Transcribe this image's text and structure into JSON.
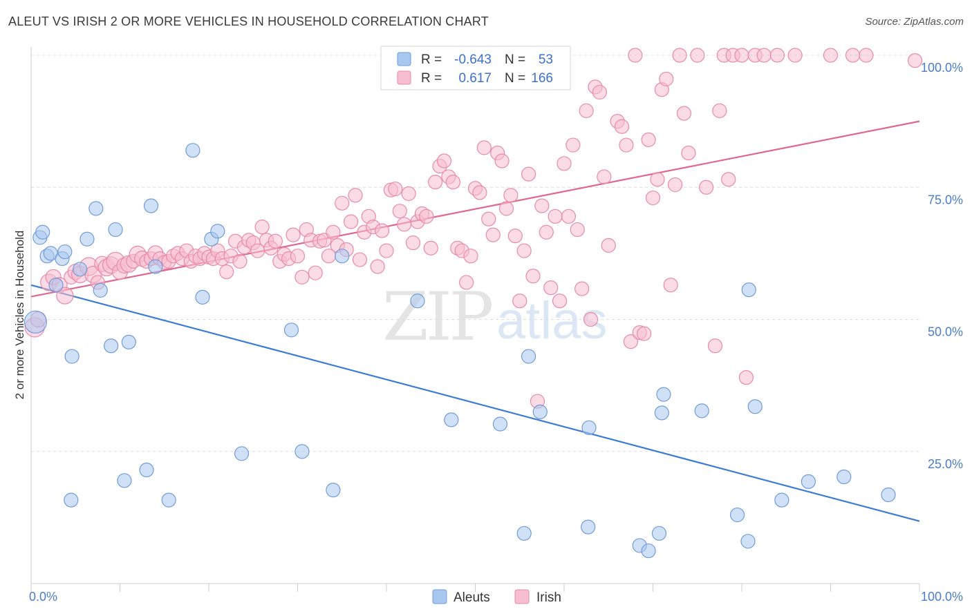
{
  "header": {
    "title": "ALEUT VS IRISH 2 OR MORE VEHICLES IN HOUSEHOLD CORRELATION CHART",
    "source": "Source: ZipAtlas.com"
  },
  "watermark": {
    "zip": "ZIP",
    "atlas": "atlas"
  },
  "legend": {
    "rows": [
      {
        "r_label": "R =",
        "r_value": "-0.643",
        "n_label": "N =",
        "n_value": "53",
        "color": "#a9c8f0",
        "stroke": "#6f9bd8"
      },
      {
        "r_label": "R =",
        "r_value": "0.617",
        "n_label": "N =",
        "n_value": "166",
        "color": "#f7bdd0",
        "stroke": "#e78aaa"
      }
    ]
  },
  "bottom_legend": [
    {
      "label": "Aleuts",
      "color": "#a9c8f0",
      "stroke": "#6f9bd8"
    },
    {
      "label": "Irish",
      "color": "#f7bdd0",
      "stroke": "#e78aaa"
    }
  ],
  "chart_data": {
    "type": "scatter",
    "xlabel": "",
    "ylabel": "2 or more Vehicles in Household",
    "xlim": [
      0,
      100
    ],
    "ylim": [
      0,
      102
    ],
    "x_tick_labels": [
      "0.0%",
      "100.0%"
    ],
    "y_ticks": [
      25,
      50,
      75,
      100
    ],
    "y_tick_labels": [
      "25.0%",
      "50.0%",
      "75.0%",
      "100.0%"
    ],
    "grid": true,
    "series": [
      {
        "name": "Aleuts",
        "color": "#a9c8f0",
        "stroke": "#6f9bd8",
        "trend": {
          "x": [
            0,
            100
          ],
          "y": [
            56.5,
            11.8
          ],
          "color": "#3a7bd5"
        },
        "points": [
          [
            0.5,
            49.5,
            16
          ],
          [
            1.0,
            65.5,
            10
          ],
          [
            1.3,
            66.5,
            10
          ],
          [
            1.8,
            62.0,
            10
          ],
          [
            2.2,
            62.5,
            10
          ],
          [
            2.8,
            56.5,
            10
          ],
          [
            3.5,
            61.5,
            10
          ],
          [
            3.8,
            62.8,
            10
          ],
          [
            4.5,
            15.8,
            10
          ],
          [
            4.6,
            43.0,
            10
          ],
          [
            5.5,
            59.5,
            10
          ],
          [
            6.3,
            65.2,
            10
          ],
          [
            7.3,
            71.0,
            10
          ],
          [
            7.8,
            55.5,
            10
          ],
          [
            9.0,
            45.0,
            10
          ],
          [
            9.5,
            67.0,
            10
          ],
          [
            10.5,
            19.5,
            10
          ],
          [
            11.0,
            45.7,
            10
          ],
          [
            13.0,
            21.5,
            10
          ],
          [
            13.5,
            71.5,
            10
          ],
          [
            14.0,
            60.0,
            10
          ],
          [
            15.5,
            15.8,
            10
          ],
          [
            18.2,
            82.0,
            10
          ],
          [
            19.3,
            54.2,
            10
          ],
          [
            20.3,
            65.2,
            10
          ],
          [
            21.0,
            66.7,
            10
          ],
          [
            23.7,
            24.6,
            10
          ],
          [
            29.3,
            48.0,
            10
          ],
          [
            30.5,
            25.0,
            10
          ],
          [
            34.0,
            17.7,
            10
          ],
          [
            35.0,
            62.0,
            10
          ],
          [
            43.5,
            53.5,
            10
          ],
          [
            47.3,
            31.0,
            10
          ],
          [
            52.8,
            30.2,
            10
          ],
          [
            56.0,
            43.0,
            10
          ],
          [
            55.5,
            9.5,
            10
          ],
          [
            57.3,
            32.5,
            10
          ],
          [
            62.7,
            10.7,
            10
          ],
          [
            62.8,
            29.5,
            10
          ],
          [
            68.5,
            7.2,
            10
          ],
          [
            69.5,
            6.2,
            10
          ],
          [
            70.7,
            9.5,
            10
          ],
          [
            71.0,
            32.3,
            10
          ],
          [
            71.2,
            35.8,
            10
          ],
          [
            75.5,
            32.7,
            10
          ],
          [
            79.5,
            13.0,
            10
          ],
          [
            80.7,
            8.0,
            10
          ],
          [
            80.8,
            55.6,
            10
          ],
          [
            81.5,
            33.5,
            10
          ],
          [
            84.5,
            15.8,
            10
          ],
          [
            87.5,
            19.3,
            10
          ],
          [
            91.5,
            20.2,
            10
          ],
          [
            96.5,
            16.8,
            10
          ]
        ]
      },
      {
        "name": "Irish",
        "color": "#f7bdd0",
        "stroke": "#e78aaa",
        "trend": {
          "x": [
            0,
            100
          ],
          "y": [
            54.3,
            87.5
          ],
          "color": "#e0668f"
        },
        "points": [
          [
            0.4,
            48.5,
            14
          ],
          [
            0.8,
            50.0,
            11
          ],
          [
            2.0,
            57.0,
            12
          ],
          [
            2.5,
            58.0,
            11
          ],
          [
            3.2,
            56.5,
            11
          ],
          [
            3.8,
            54.5,
            12
          ],
          [
            4.5,
            58.0,
            10
          ],
          [
            5.0,
            59.0,
            11
          ],
          [
            5.5,
            58.5,
            12
          ],
          [
            6.5,
            60.0,
            13
          ],
          [
            7.0,
            58.5,
            12
          ],
          [
            7.5,
            57.0,
            10
          ],
          [
            8.0,
            60.5,
            11
          ],
          [
            8.5,
            59.8,
            12
          ],
          [
            9.0,
            60.3,
            12
          ],
          [
            9.5,
            61.0,
            13
          ],
          [
            10.0,
            59.0,
            11
          ],
          [
            10.5,
            60.2,
            11
          ],
          [
            11.0,
            60.5,
            12
          ],
          [
            11.5,
            61.0,
            10
          ],
          [
            12.0,
            62.3,
            12
          ],
          [
            12.5,
            61.5,
            11
          ],
          [
            13.0,
            61.0,
            10
          ],
          [
            13.5,
            61.5,
            10
          ],
          [
            14.0,
            62.5,
            11
          ],
          [
            14.5,
            61.5,
            10
          ],
          [
            15.0,
            60.8,
            10
          ],
          [
            15.5,
            61.0,
            10
          ],
          [
            16.0,
            62.0,
            10
          ],
          [
            16.5,
            62.5,
            10
          ],
          [
            17.0,
            61.5,
            10
          ],
          [
            17.5,
            63.0,
            10
          ],
          [
            18.0,
            61.0,
            10
          ],
          [
            18.5,
            62.0,
            10
          ],
          [
            19.0,
            61.5,
            10
          ],
          [
            19.5,
            62.5,
            10
          ],
          [
            20.0,
            61.8,
            10
          ],
          [
            20.5,
            61.5,
            10
          ],
          [
            21.0,
            63.0,
            10
          ],
          [
            21.5,
            61.5,
            10
          ],
          [
            22.0,
            59.0,
            10
          ],
          [
            22.5,
            62.0,
            10
          ],
          [
            23.0,
            64.8,
            10
          ],
          [
            23.5,
            61.0,
            10
          ],
          [
            24.0,
            63.7,
            10
          ],
          [
            24.5,
            65.0,
            10
          ],
          [
            25.0,
            64.5,
            10
          ],
          [
            25.5,
            63.0,
            10
          ],
          [
            26.0,
            67.5,
            10
          ],
          [
            26.5,
            65.0,
            10
          ],
          [
            27.0,
            63.5,
            10
          ],
          [
            27.5,
            64.8,
            10
          ],
          [
            28.0,
            61.0,
            10
          ],
          [
            28.5,
            62.3,
            10
          ],
          [
            29.0,
            61.5,
            10
          ],
          [
            29.5,
            66.0,
            10
          ],
          [
            30.0,
            62.0,
            10
          ],
          [
            30.5,
            58.0,
            10
          ],
          [
            31.0,
            67.0,
            10
          ],
          [
            31.5,
            65.0,
            10
          ],
          [
            32.0,
            58.8,
            10
          ],
          [
            32.5,
            64.8,
            10
          ],
          [
            33.0,
            65.0,
            10
          ],
          [
            33.5,
            62.0,
            10
          ],
          [
            34.0,
            66.5,
            10
          ],
          [
            34.5,
            64.0,
            10
          ],
          [
            35.0,
            72.0,
            10
          ],
          [
            35.5,
            63.2,
            10
          ],
          [
            36.0,
            68.5,
            10
          ],
          [
            36.5,
            73.5,
            10
          ],
          [
            37.0,
            61.3,
            10
          ],
          [
            37.5,
            66.5,
            10
          ],
          [
            38.0,
            69.5,
            10
          ],
          [
            38.5,
            67.5,
            10
          ],
          [
            39.0,
            60.0,
            10
          ],
          [
            39.5,
            66.8,
            10
          ],
          [
            40.0,
            63.0,
            10
          ],
          [
            40.5,
            74.5,
            10
          ],
          [
            41.0,
            74.7,
            10
          ],
          [
            41.5,
            70.5,
            10
          ],
          [
            42.0,
            68.0,
            10
          ],
          [
            42.5,
            73.8,
            10
          ],
          [
            43.0,
            64.5,
            10
          ],
          [
            43.5,
            68.5,
            10
          ],
          [
            44.0,
            70.0,
            10
          ],
          [
            44.5,
            69.5,
            10
          ],
          [
            45.0,
            63.5,
            10
          ],
          [
            45.5,
            76.0,
            10
          ],
          [
            46.0,
            79.0,
            10
          ],
          [
            46.5,
            80.0,
            10
          ],
          [
            47.0,
            77.0,
            10
          ],
          [
            47.5,
            76.0,
            10
          ],
          [
            48.0,
            63.5,
            10
          ],
          [
            48.5,
            63.0,
            10
          ],
          [
            49.0,
            57.0,
            10
          ],
          [
            49.5,
            62.0,
            10
          ],
          [
            50.0,
            74.8,
            10
          ],
          [
            50.5,
            74.0,
            10
          ],
          [
            51.0,
            82.5,
            10
          ],
          [
            51.5,
            69.0,
            10
          ],
          [
            52.0,
            66.0,
            10
          ],
          [
            52.5,
            81.5,
            10
          ],
          [
            53.0,
            80.0,
            10
          ],
          [
            53.5,
            71.0,
            10
          ],
          [
            54.0,
            73.5,
            10
          ],
          [
            54.5,
            65.8,
            10
          ],
          [
            55.0,
            53.5,
            10
          ],
          [
            55.5,
            63.0,
            10
          ],
          [
            56.0,
            77.5,
            10
          ],
          [
            56.5,
            58.2,
            10
          ],
          [
            57.0,
            34.5,
            10
          ],
          [
            57.5,
            71.5,
            10
          ],
          [
            58.0,
            66.5,
            10
          ],
          [
            58.5,
            56.0,
            10
          ],
          [
            59.0,
            69.5,
            10
          ],
          [
            59.5,
            53.5,
            10
          ],
          [
            60.0,
            79.5,
            10
          ],
          [
            60.5,
            69.5,
            10
          ],
          [
            61.0,
            83.0,
            10
          ],
          [
            61.5,
            67.0,
            10
          ],
          [
            62.0,
            55.8,
            10
          ],
          [
            62.5,
            89.5,
            10
          ],
          [
            63.0,
            50.0,
            10
          ],
          [
            63.5,
            94.0,
            10
          ],
          [
            64.0,
            93.0,
            10
          ],
          [
            64.5,
            77.0,
            10
          ],
          [
            65.0,
            64.0,
            10
          ],
          [
            66.0,
            87.5,
            10
          ],
          [
            66.5,
            86.5,
            10
          ],
          [
            67.0,
            83.0,
            10
          ],
          [
            67.5,
            45.8,
            10
          ],
          [
            68.0,
            100.0,
            10
          ],
          [
            68.5,
            47.5,
            10
          ],
          [
            69.0,
            47.3,
            10
          ],
          [
            69.5,
            84.0,
            10
          ],
          [
            70.0,
            73.0,
            10
          ],
          [
            70.5,
            76.5,
            10
          ],
          [
            71.0,
            93.5,
            10
          ],
          [
            71.5,
            95.5,
            10
          ],
          [
            72.0,
            56.5,
            10
          ],
          [
            72.5,
            75.5,
            10
          ],
          [
            73.0,
            100.0,
            10
          ],
          [
            73.5,
            89.0,
            10
          ],
          [
            74.0,
            81.5,
            10
          ],
          [
            75.0,
            100.0,
            10
          ],
          [
            76.0,
            75.0,
            10
          ],
          [
            77.0,
            45.0,
            10
          ],
          [
            77.5,
            89.5,
            10
          ],
          [
            78.0,
            100.0,
            10
          ],
          [
            78.5,
            76.5,
            10
          ],
          [
            79.0,
            100.0,
            10
          ],
          [
            80.0,
            100.0,
            10
          ],
          [
            80.5,
            39.0,
            10
          ],
          [
            81.5,
            100.0,
            10
          ],
          [
            82.5,
            100.0,
            10
          ],
          [
            84.0,
            100.0,
            10
          ],
          [
            86.0,
            100.0,
            10
          ],
          [
            90.0,
            100.0,
            10
          ],
          [
            92.5,
            100.0,
            10
          ],
          [
            94.0,
            100.0,
            10
          ],
          [
            99.5,
            99.0,
            10
          ]
        ]
      }
    ]
  }
}
